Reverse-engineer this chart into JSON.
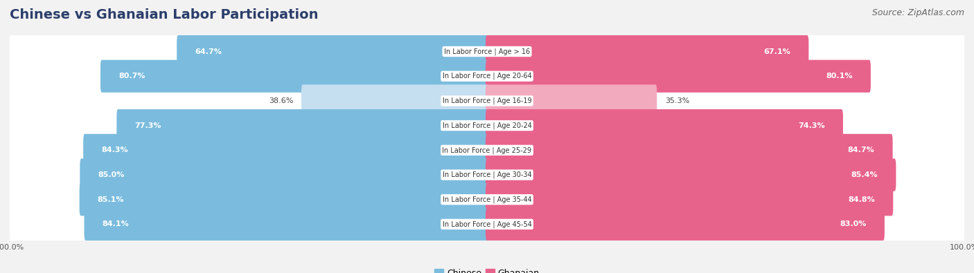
{
  "title": "Chinese vs Ghanaian Labor Participation",
  "source": "Source: ZipAtlas.com",
  "categories": [
    "In Labor Force | Age > 16",
    "In Labor Force | Age 20-64",
    "In Labor Force | Age 16-19",
    "In Labor Force | Age 20-24",
    "In Labor Force | Age 25-29",
    "In Labor Force | Age 30-34",
    "In Labor Force | Age 35-44",
    "In Labor Force | Age 45-54"
  ],
  "chinese_values": [
    64.7,
    80.7,
    38.6,
    77.3,
    84.3,
    85.0,
    85.1,
    84.1
  ],
  "ghanaian_values": [
    67.1,
    80.1,
    35.3,
    74.3,
    84.7,
    85.4,
    84.8,
    83.0
  ],
  "chinese_color": "#7BBCDE",
  "chinese_color_light": "#C5DFF0",
  "ghanaian_color": "#E8638C",
  "ghanaian_color_light": "#F2AABF",
  "max_value": 100.0,
  "background_color": "#F2F2F2",
  "row_bg_color": "#FFFFFF",
  "label_color_dark": "#444444",
  "label_color_white": "#FFFFFF",
  "title_fontsize": 14,
  "source_fontsize": 9,
  "bar_label_fontsize": 8,
  "category_fontsize": 7,
  "legend_fontsize": 9,
  "axis_label_fontsize": 8,
  "low_threshold": 60
}
